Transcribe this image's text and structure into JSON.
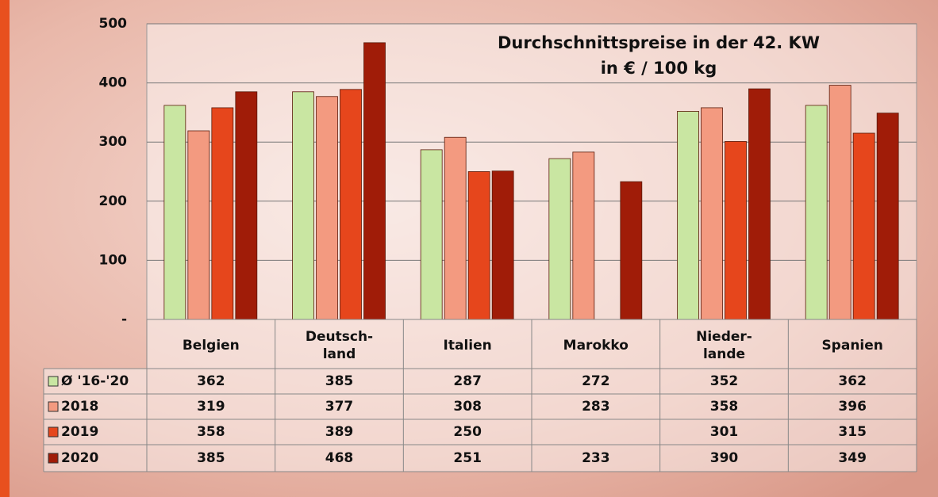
{
  "chart_data": {
    "type": "bar",
    "title": "Durchschnittspreise in der 42. KW",
    "subtitle": "in € / 100 kg",
    "categories": [
      "Belgien",
      "Deutsch-\nland",
      "Italien",
      "Marokko",
      "Nieder-\nlande",
      "Spanien"
    ],
    "series": [
      {
        "name": "Ø '16-'20",
        "color": "#c9e6a2",
        "values": [
          362,
          385,
          287,
          272,
          352,
          362
        ]
      },
      {
        "name": "2018",
        "color": "#f39a80",
        "values": [
          319,
          377,
          308,
          283,
          358,
          396
        ]
      },
      {
        "name": "2019",
        "color": "#e6461c",
        "values": [
          358,
          389,
          250,
          null,
          301,
          315
        ]
      },
      {
        "name": "2020",
        "color": "#a01c08",
        "values": [
          385,
          468,
          251,
          233,
          390,
          349
        ]
      }
    ],
    "ylim": [
      0,
      500
    ],
    "yticks": [
      {
        "value": 0,
        "label": "-"
      },
      100,
      200,
      300,
      400,
      500
    ],
    "grid": true
  }
}
